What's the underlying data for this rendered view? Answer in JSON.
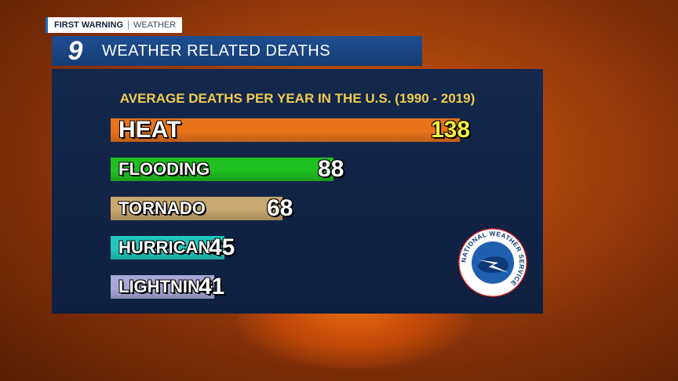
{
  "brand": {
    "strong": "FIRST WARNING",
    "light": "WEATHER"
  },
  "header": {
    "logo": "9",
    "title": "WEATHER RELATED DEATHS"
  },
  "nws_logo": {
    "icon": "national-weather-service-seal",
    "text": "NATIONAL WEATHER SERVICE"
  },
  "colors": {
    "heat": "#e8731a",
    "flooding": "#20c020",
    "tornado": "#c8a870",
    "hurricane": "#22c8c0",
    "lightning": "#a8a8d8",
    "highlight_value": "#f2f040",
    "subtitle": "#f0cc4e"
  },
  "chart_data": {
    "type": "bar",
    "orientation": "horizontal",
    "title": "AVERAGE DEATHS PER YEAR IN THE U.S. (1990 - 2019)",
    "categories": [
      "HEAT",
      "FLOODING",
      "TORNADO",
      "HURRICANE",
      "LIGHTNING"
    ],
    "values": [
      138,
      88,
      68,
      45,
      41
    ],
    "value_labels": [
      "138",
      "88",
      "68",
      "45",
      "41"
    ],
    "xlim": [
      0,
      138
    ]
  }
}
